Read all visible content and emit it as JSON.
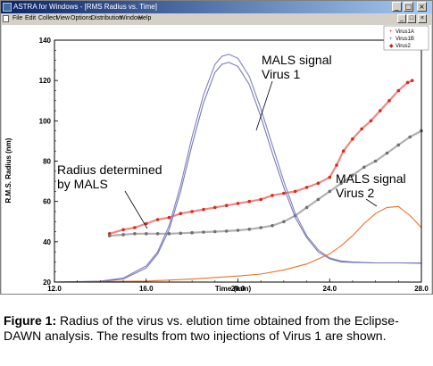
{
  "window": {
    "title": "ASTRA for Windows - [RMS Radius vs. Time]",
    "controls": {
      "minimize": "_",
      "maximize": "□",
      "close": "×"
    },
    "doc_controls": {
      "minimize": "_",
      "restore": "□",
      "close": "×"
    }
  },
  "menubar": {
    "items": [
      "File",
      "Edit",
      "Collect",
      "View",
      "Options",
      "Distribution",
      "Window",
      "Help"
    ]
  },
  "chart_data": {
    "type": "scatter",
    "xlabel": "Time (min)",
    "ylabel": "R.M.S. Radius (nm)",
    "xlim": [
      12.0,
      28.0
    ],
    "ylim": [
      20,
      140
    ],
    "x_ticks": [
      "12.0",
      "16.0",
      "20.0",
      "24.0",
      "28.0"
    ],
    "y_ticks": [
      "20",
      "40",
      "60",
      "80",
      "100",
      "120",
      "140"
    ],
    "grid": false,
    "legend_position": "top-right",
    "legend": [
      "Virus1A",
      "Virus1B",
      "Virus2"
    ],
    "series": [
      {
        "name": "Virus1A",
        "color": "#e0261b",
        "kind": "rms-radius points",
        "x": [
          14.4,
          15.0,
          15.5,
          16.0,
          16.5,
          17.0,
          17.5,
          18.0,
          18.5,
          19.0,
          19.5,
          20.0,
          20.5,
          21.0,
          21.5,
          22.0,
          22.5,
          23.0,
          23.5,
          24.0,
          24.3,
          24.6,
          25.0,
          25.4,
          25.8,
          26.2,
          26.6,
          27.0,
          27.4,
          27.6
        ],
        "y": [
          44,
          46,
          47,
          49,
          51,
          52,
          54,
          55,
          56,
          57,
          58,
          59,
          60,
          61,
          63,
          64,
          65,
          67,
          69,
          72,
          78,
          85,
          91,
          96,
          100,
          105,
          110,
          115,
          119,
          120
        ]
      },
      {
        "name": "Virus1B",
        "color": "#707070",
        "kind": "rms-radius points",
        "x": [
          14.4,
          15.0,
          15.5,
          16.0,
          16.5,
          17.0,
          17.5,
          18.0,
          18.5,
          19.0,
          19.5,
          20.0,
          20.5,
          21.0,
          21.5,
          22.0,
          22.5,
          23.0,
          23.5,
          24.0,
          24.5,
          25.0,
          25.5,
          26.0,
          26.5,
          27.0,
          27.5,
          28.0
        ],
        "y": [
          43,
          43.5,
          44,
          44,
          44,
          44,
          44.2,
          44.5,
          44.8,
          45,
          45.3,
          45.7,
          46.2,
          47,
          48,
          50,
          53,
          57,
          61,
          65,
          69,
          73,
          77,
          80,
          84,
          88,
          92,
          95
        ]
      },
      {
        "name": "MALS signal Virus 1 (injection A)",
        "color": "#8080c0",
        "kind": "signal line",
        "x": [
          12.0,
          14.0,
          15.0,
          16.0,
          16.5,
          17.0,
          17.5,
          18.0,
          18.5,
          19.0,
          19.3,
          19.6,
          20.0,
          20.5,
          21.0,
          21.5,
          22.0,
          22.5,
          23.0,
          23.5,
          24.0,
          24.5,
          25.0,
          26.0,
          27.0,
          28.0
        ],
        "y": [
          20,
          20.5,
          22,
          28,
          35,
          48,
          68,
          92,
          113,
          128,
          132,
          133,
          131,
          122,
          106,
          88,
          70,
          54,
          43,
          36,
          32,
          30.5,
          30,
          29.5,
          29.5,
          29.5
        ]
      },
      {
        "name": "MALS signal Virus 1 (injection B)",
        "color": "#7878b8",
        "kind": "signal line",
        "x": [
          12.0,
          14.0,
          15.0,
          16.0,
          16.5,
          17.0,
          17.5,
          18.0,
          18.5,
          19.0,
          19.3,
          19.6,
          20.0,
          20.5,
          21.0,
          21.5,
          22.0,
          22.5,
          23.0,
          23.5,
          24.0,
          24.5,
          25.0,
          26.0,
          27.0,
          28.0
        ],
        "y": [
          20,
          20.3,
          21.5,
          27,
          34,
          46,
          65,
          88,
          109,
          124,
          128,
          129,
          127,
          118,
          102,
          84,
          67,
          52,
          42,
          35,
          31.5,
          30,
          29.8,
          29.5,
          29.5,
          29.3
        ]
      },
      {
        "name": "MALS signal Virus 2",
        "color": "#f07020",
        "kind": "signal line",
        "x": [
          12.0,
          16.0,
          18.0,
          20.0,
          21.0,
          22.0,
          23.0,
          24.0,
          24.5,
          25.0,
          25.5,
          26.0,
          26.5,
          27.0,
          27.5,
          28.0
        ],
        "y": [
          20,
          20.5,
          21.5,
          23,
          24,
          26,
          29,
          34,
          38,
          43,
          49,
          54,
          57,
          57.5,
          53,
          47
        ]
      }
    ],
    "annotations": [
      {
        "text_lines": [
          "MALS signal",
          "Virus 1"
        ]
      },
      {
        "text_lines": [
          "Radius determined",
          "by MALS"
        ]
      },
      {
        "text_lines": [
          "MALS signal",
          "Virus 2"
        ]
      }
    ]
  },
  "caption": {
    "label": "Figure 1:",
    "text": " Radius of the virus vs. elution time obtained from the Eclipse-DAWN analysis. The results from two injections of Virus 1 are shown."
  }
}
